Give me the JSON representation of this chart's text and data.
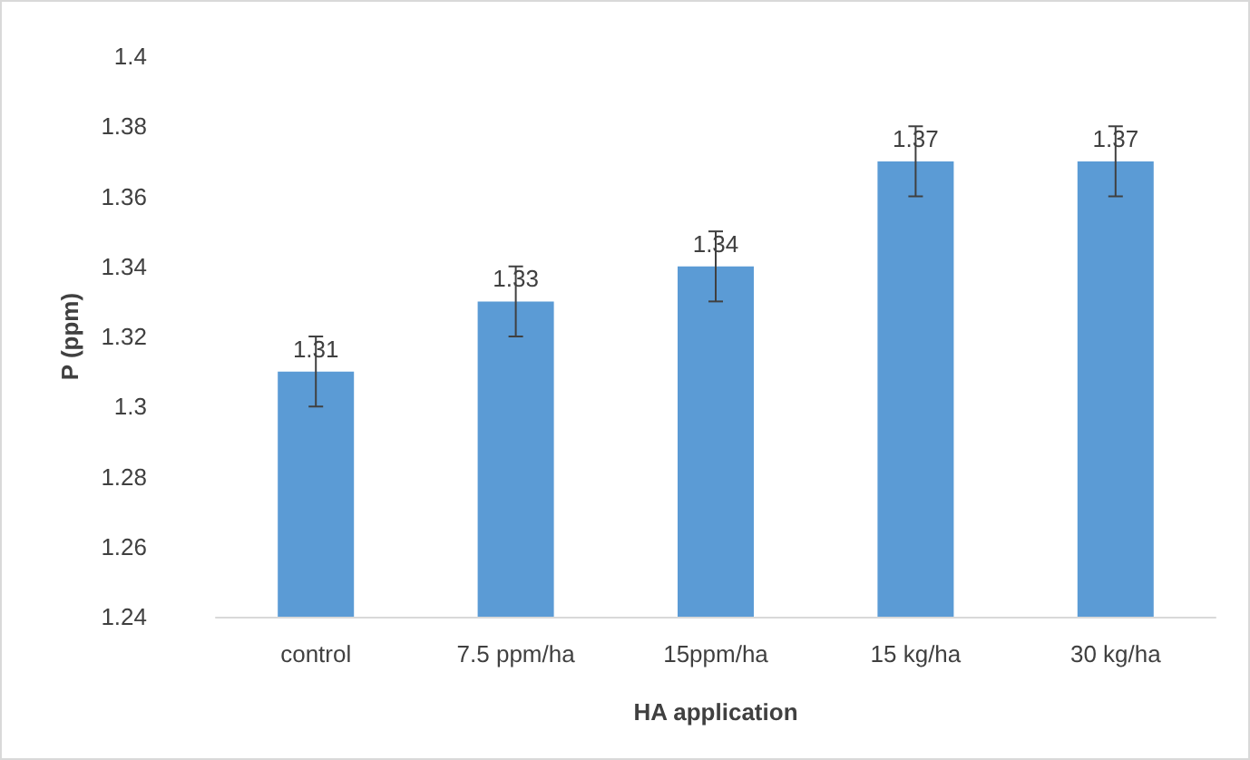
{
  "chart_data": {
    "type": "bar",
    "xlabel": "HA application",
    "ylabel": "P (ppm)",
    "categories": [
      "control",
      "7.5 ppm/ha",
      "15ppm/ha",
      "15 kg/ha",
      "30 kg/ha"
    ],
    "values": [
      1.31,
      1.33,
      1.34,
      1.37,
      1.37
    ],
    "errors": [
      0.01,
      0.01,
      0.01,
      0.01,
      0.01
    ],
    "color": "#5b9bd5",
    "ylim": [
      1.24,
      1.4
    ],
    "yticks": [
      1.24,
      1.26,
      1.28,
      1.3,
      1.32,
      1.34,
      1.36,
      1.38,
      1.4
    ],
    "data_labels": true,
    "grid": false
  }
}
